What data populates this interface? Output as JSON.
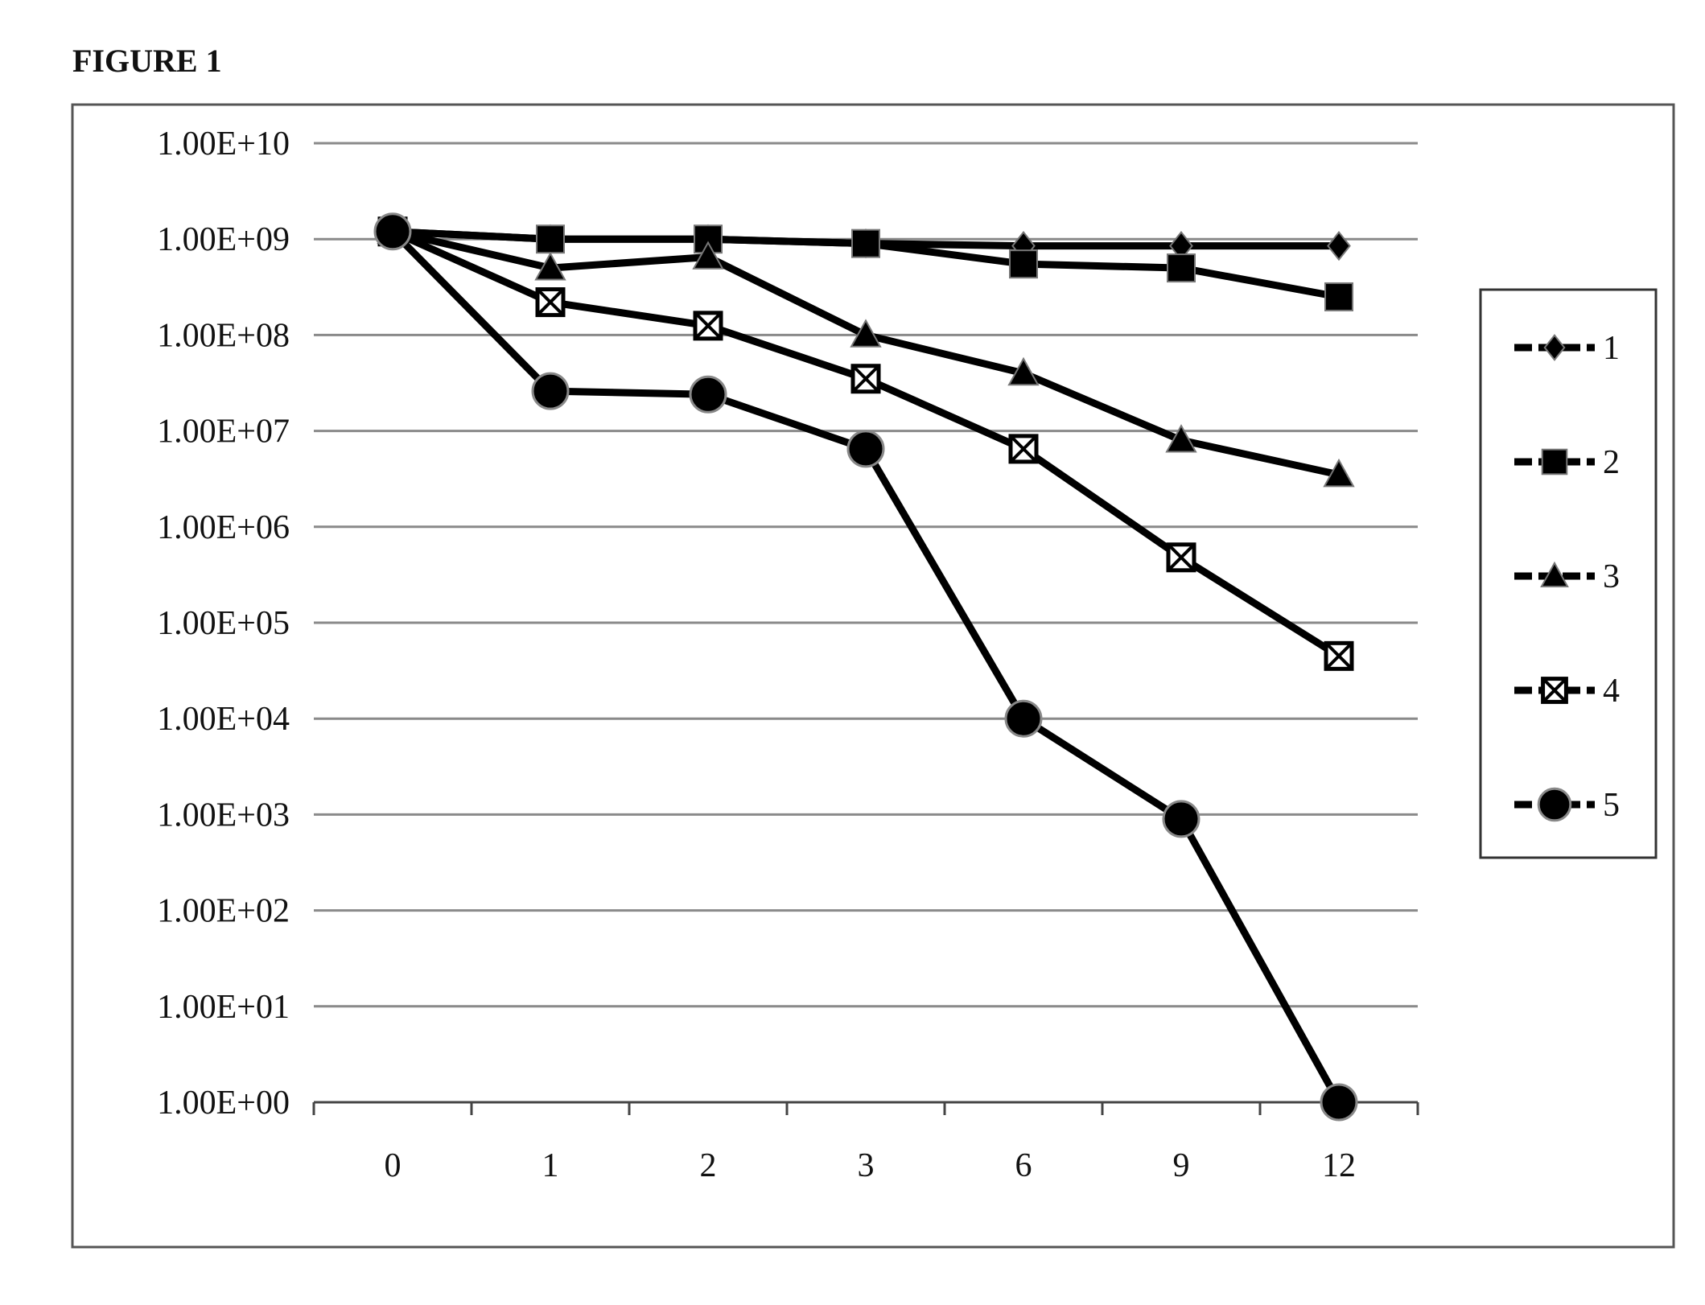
{
  "figure_label": "FIGURE 1",
  "chart_data": {
    "type": "line",
    "title": "",
    "xlabel": "",
    "ylabel": "",
    "y_scale": "log",
    "ylim": [
      1,
      10000000000
    ],
    "y_ticks": [
      {
        "value": 1,
        "label": "1.00E+00"
      },
      {
        "value": 10,
        "label": "1.00E+01"
      },
      {
        "value": 100,
        "label": "1.00E+02"
      },
      {
        "value": 1000,
        "label": "1.00E+03"
      },
      {
        "value": 10000,
        "label": "1.00E+04"
      },
      {
        "value": 100000,
        "label": "1.00E+05"
      },
      {
        "value": 1000000,
        "label": "1.00E+06"
      },
      {
        "value": 10000000,
        "label": "1.00E+07"
      },
      {
        "value": 100000000,
        "label": "1.00E+08"
      },
      {
        "value": 1000000000,
        "label": "1.00E+09"
      },
      {
        "value": 10000000000,
        "label": "1.00E+10"
      }
    ],
    "categories": [
      "0",
      "1",
      "2",
      "3",
      "6",
      "9",
      "12"
    ],
    "grid": true,
    "legend_position": "right",
    "series": [
      {
        "name": "1",
        "marker": "diamond",
        "color": "#000000",
        "values": [
          1200000000,
          1000000000,
          1000000000,
          900000000,
          850000000,
          850000000,
          850000000
        ]
      },
      {
        "name": "2",
        "marker": "square",
        "color": "#000000",
        "values": [
          1200000000,
          1000000000,
          1000000000,
          900000000,
          550000000,
          500000000,
          250000000
        ]
      },
      {
        "name": "3",
        "marker": "triangle",
        "color": "#000000",
        "values": [
          1200000000,
          500000000,
          650000000,
          100000000,
          40000000,
          8000000,
          3500000
        ]
      },
      {
        "name": "4",
        "marker": "x-square",
        "color": "#000000",
        "values": [
          1200000000,
          220000000,
          125000000,
          35000000,
          6500000,
          480000,
          45000
        ]
      },
      {
        "name": "5",
        "marker": "circle",
        "color": "#000000",
        "values": [
          1200000000,
          26000000,
          24000000,
          6500000,
          10000,
          900,
          1
        ]
      }
    ]
  }
}
